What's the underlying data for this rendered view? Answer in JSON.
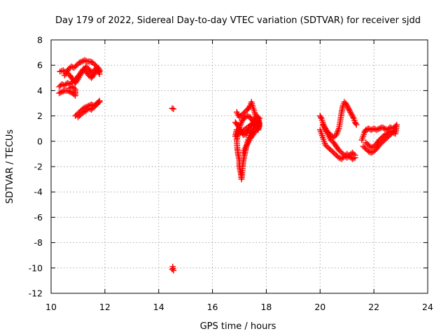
{
  "chart_data": {
    "type": "scatter",
    "title": "Day 179 of 2022, Sidereal Day-to-day VTEC variation (SDTVAR) for receiver sjdd",
    "xlabel": "GPS time / hours",
    "ylabel": "SDTVAR / TECUs",
    "xlim": [
      10,
      24
    ],
    "ylim": [
      -12,
      8
    ],
    "xticks": [
      10,
      12,
      14,
      16,
      18,
      20,
      22,
      24
    ],
    "yticks": [
      -12,
      -10,
      -8,
      -6,
      -4,
      -2,
      0,
      2,
      4,
      6,
      8
    ],
    "grid": true,
    "marker": "+",
    "color": "#ff0000",
    "series": [
      {
        "name": "SDTVAR",
        "segments": [
          [
            [
              10.33,
              5.5
            ],
            [
              10.45,
              5.6
            ],
            [
              10.55,
              5.4
            ],
            [
              10.65,
              5.7
            ],
            [
              10.75,
              5.9
            ],
            [
              10.85,
              5.8
            ],
            [
              10.95,
              6.0
            ],
            [
              11.05,
              6.2
            ],
            [
              11.15,
              6.3
            ],
            [
              11.25,
              6.4
            ],
            [
              11.35,
              6.3
            ],
            [
              11.45,
              6.3
            ],
            [
              11.55,
              6.2
            ],
            [
              11.65,
              6.0
            ],
            [
              11.75,
              5.8
            ],
            [
              11.8,
              5.6
            ]
          ],
          [
            [
              10.5,
              5.2
            ],
            [
              10.6,
              5.4
            ],
            [
              10.7,
              5.2
            ],
            [
              10.8,
              4.9
            ],
            [
              10.9,
              4.6
            ],
            [
              11.0,
              4.9
            ],
            [
              11.1,
              5.3
            ],
            [
              11.2,
              5.6
            ],
            [
              11.3,
              5.9
            ],
            [
              11.4,
              5.7
            ],
            [
              11.5,
              5.4
            ],
            [
              11.6,
              5.6
            ],
            [
              11.7,
              5.8
            ],
            [
              11.8,
              5.3
            ]
          ],
          [
            [
              10.3,
              4.3
            ],
            [
              10.4,
              4.5
            ],
            [
              10.5,
              4.4
            ],
            [
              10.6,
              4.6
            ],
            [
              10.7,
              4.5
            ],
            [
              10.8,
              4.7
            ],
            [
              10.9,
              4.9
            ],
            [
              11.0,
              5.1
            ],
            [
              11.1,
              5.4
            ],
            [
              11.2,
              5.7
            ],
            [
              11.3,
              5.5
            ],
            [
              11.4,
              5.2
            ],
            [
              11.5,
              5.0
            ],
            [
              11.6,
              5.3
            ],
            [
              11.7,
              5.6
            ],
            [
              11.8,
              5.5
            ]
          ],
          [
            [
              10.3,
              3.8
            ],
            [
              10.4,
              3.9
            ],
            [
              10.5,
              4.0
            ],
            [
              10.6,
              4.0
            ],
            [
              10.7,
              3.9
            ],
            [
              10.8,
              3.8
            ],
            [
              10.9,
              3.6
            ],
            [
              10.9,
              4.1
            ],
            [
              10.8,
              4.3
            ],
            [
              10.7,
              4.2
            ]
          ],
          [
            [
              10.9,
              2.0
            ],
            [
              11.0,
              2.2
            ],
            [
              11.1,
              2.4
            ],
            [
              11.2,
              2.6
            ],
            [
              11.3,
              2.7
            ],
            [
              11.4,
              2.8
            ],
            [
              11.5,
              2.9
            ],
            [
              11.6,
              2.8
            ],
            [
              11.7,
              3.0
            ],
            [
              11.8,
              3.1
            ]
          ],
          [
            [
              11.0,
              1.9
            ],
            [
              11.1,
              2.1
            ],
            [
              11.2,
              2.3
            ],
            [
              11.3,
              2.4
            ],
            [
              11.4,
              2.6
            ],
            [
              11.5,
              2.5
            ],
            [
              11.6,
              2.7
            ],
            [
              11.7,
              2.9
            ],
            [
              11.8,
              3.2
            ]
          ],
          [
            [
              14.5,
              2.6
            ],
            [
              14.55,
              2.55
            ]
          ],
          [
            [
              14.5,
              -10.1
            ],
            [
              14.55,
              -10.2
            ],
            [
              14.52,
              -9.9
            ]
          ],
          [
            [
              16.9,
              2.3
            ],
            [
              17.0,
              1.9
            ],
            [
              17.1,
              2.1
            ],
            [
              17.2,
              2.3
            ],
            [
              17.3,
              2.5
            ],
            [
              17.4,
              2.8
            ],
            [
              17.45,
              3.1
            ],
            [
              17.5,
              2.7
            ],
            [
              17.55,
              2.4
            ],
            [
              17.6,
              2.0
            ],
            [
              17.7,
              1.6
            ],
            [
              17.75,
              1.2
            ],
            [
              17.7,
              0.9
            ],
            [
              17.6,
              1.2
            ],
            [
              17.5,
              1.6
            ],
            [
              17.4,
              1.9
            ],
            [
              17.3,
              2.0
            ],
            [
              17.2,
              1.9
            ],
            [
              17.1,
              1.6
            ],
            [
              17.0,
              1.1
            ],
            [
              16.95,
              0.6
            ],
            [
              16.9,
              0.1
            ],
            [
              16.92,
              -0.5
            ],
            [
              16.95,
              -1.0
            ],
            [
              17.0,
              -1.5
            ],
            [
              17.0,
              -2.0
            ],
            [
              17.05,
              -2.5
            ],
            [
              17.08,
              -3.0
            ],
            [
              17.1,
              -2.6
            ],
            [
              17.12,
              -2.0
            ],
            [
              17.15,
              -1.5
            ],
            [
              17.2,
              -1.0
            ],
            [
              17.25,
              -0.5
            ],
            [
              17.3,
              -0.1
            ],
            [
              17.35,
              0.3
            ],
            [
              17.4,
              0.6
            ],
            [
              17.5,
              0.9
            ],
            [
              17.55,
              1.2
            ],
            [
              17.6,
              1.5
            ],
            [
              17.7,
              1.9
            ],
            [
              17.75,
              1.4
            ],
            [
              17.7,
              1.0
            ],
            [
              17.6,
              0.8
            ],
            [
              17.5,
              0.5
            ],
            [
              17.4,
              0.2
            ],
            [
              17.3,
              -0.2
            ],
            [
              17.2,
              -0.6
            ],
            [
              17.15,
              -0.9
            ]
          ],
          [
            [
              16.85,
              1.5
            ],
            [
              16.95,
              1.2
            ],
            [
              17.05,
              0.8
            ],
            [
              17.15,
              0.5
            ],
            [
              17.25,
              0.6
            ],
            [
              17.35,
              0.9
            ],
            [
              17.45,
              1.3
            ],
            [
              17.55,
              1.7
            ],
            [
              17.65,
              2.0
            ],
            [
              17.75,
              1.8
            ],
            [
              16.85,
              0.4
            ],
            [
              16.9,
              0.9
            ]
          ],
          [
            [
              20.0,
              2.0
            ],
            [
              20.05,
              1.8
            ],
            [
              20.1,
              1.5
            ],
            [
              20.15,
              1.2
            ],
            [
              20.2,
              0.9
            ],
            [
              20.3,
              0.7
            ],
            [
              20.4,
              0.5
            ],
            [
              20.5,
              0.3
            ],
            [
              20.6,
              0.5
            ],
            [
              20.7,
              1.0
            ],
            [
              20.75,
              1.6
            ],
            [
              20.8,
              2.3
            ],
            [
              20.85,
              2.8
            ],
            [
              20.9,
              3.1
            ],
            [
              20.95,
              3.0
            ],
            [
              21.0,
              2.8
            ],
            [
              21.05,
              2.6
            ],
            [
              21.1,
              2.4
            ],
            [
              21.15,
              2.2
            ],
            [
              21.2,
              2.0
            ],
            [
              21.25,
              1.8
            ],
            [
              21.3,
              1.5
            ],
            [
              21.35,
              1.3
            ]
          ],
          [
            [
              20.0,
              0.9
            ],
            [
              20.05,
              0.6
            ],
            [
              20.1,
              0.3
            ],
            [
              20.15,
              0.0
            ],
            [
              20.2,
              -0.3
            ],
            [
              20.3,
              -0.5
            ],
            [
              20.4,
              -0.7
            ],
            [
              20.5,
              -0.9
            ],
            [
              20.6,
              -1.1
            ],
            [
              20.7,
              -1.3
            ],
            [
              20.8,
              -1.4
            ],
            [
              20.9,
              -1.2
            ],
            [
              21.0,
              -1.0
            ],
            [
              21.1,
              -1.2
            ],
            [
              21.2,
              -1.4
            ],
            [
              21.3,
              -1.3
            ]
          ],
          [
            [
              20.1,
              1.3
            ],
            [
              20.2,
              1.0
            ],
            [
              20.3,
              0.5
            ],
            [
              20.4,
              0.1
            ],
            [
              20.5,
              -0.1
            ],
            [
              20.6,
              -0.4
            ],
            [
              20.7,
              -0.7
            ],
            [
              20.8,
              -0.9
            ],
            [
              20.9,
              -1.1
            ],
            [
              21.0,
              -1.3
            ],
            [
              21.1,
              -1.1
            ],
            [
              21.2,
              -0.9
            ],
            [
              21.3,
              -1.1
            ]
          ],
          [
            [
              21.55,
              0.1
            ],
            [
              21.6,
              0.4
            ],
            [
              21.65,
              0.7
            ],
            [
              21.7,
              0.9
            ],
            [
              21.8,
              1.0
            ],
            [
              21.9,
              0.9
            ],
            [
              22.0,
              1.0
            ],
            [
              22.1,
              0.9
            ],
            [
              22.2,
              1.0
            ],
            [
              22.3,
              1.1
            ],
            [
              22.4,
              1.0
            ],
            [
              22.5,
              0.9
            ],
            [
              22.6,
              1.1
            ],
            [
              22.7,
              1.0
            ],
            [
              22.8,
              1.2
            ]
          ],
          [
            [
              21.6,
              -0.4
            ],
            [
              21.7,
              -0.6
            ],
            [
              21.8,
              -0.8
            ],
            [
              21.9,
              -0.9
            ],
            [
              22.0,
              -0.8
            ],
            [
              22.1,
              -0.6
            ],
            [
              22.2,
              -0.3
            ],
            [
              22.3,
              -0.1
            ],
            [
              22.4,
              0.1
            ],
            [
              22.5,
              0.3
            ],
            [
              22.6,
              0.5
            ],
            [
              22.7,
              0.7
            ],
            [
              22.8,
              0.9
            ]
          ],
          [
            [
              21.7,
              -0.1
            ],
            [
              21.8,
              -0.3
            ],
            [
              21.9,
              -0.5
            ],
            [
              22.0,
              -0.4
            ],
            [
              22.1,
              -0.2
            ],
            [
              22.2,
              0.1
            ],
            [
              22.3,
              0.3
            ],
            [
              22.4,
              0.5
            ],
            [
              22.5,
              0.6
            ],
            [
              22.6,
              0.8
            ],
            [
              22.7,
              0.7
            ],
            [
              22.8,
              0.6
            ],
            [
              22.85,
              1.3
            ]
          ]
        ]
      }
    ]
  }
}
